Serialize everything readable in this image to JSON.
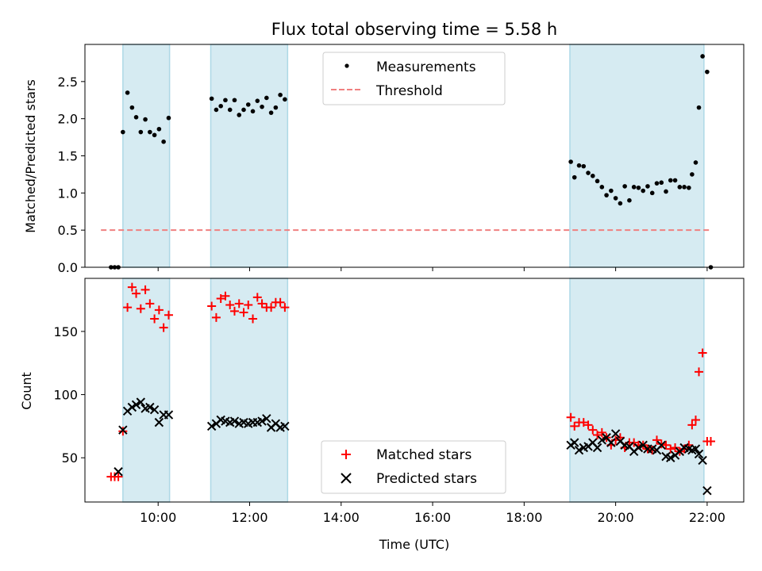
{
  "figure": {
    "title": "Flux total observing time = 5.58 h",
    "xlabel": "Time (UTC)",
    "colors": {
      "shade": "#add8e6",
      "threshold": "#f08080",
      "matched": "#ff0000",
      "predicted": "#000000",
      "points": "#000000"
    }
  },
  "chart_data": [
    {
      "type": "scatter",
      "title": "Flux total observing time = 5.58 h",
      "ylabel": "Matched/Predicted stars",
      "x_range_hours": [
        8.4,
        22.8
      ],
      "ylim": [
        0,
        3.0
      ],
      "y_ticks": [
        0.0,
        0.5,
        1.0,
        1.5,
        2.0,
        2.5
      ],
      "y_tick_labels": [
        "0.0",
        "0.5",
        "1.0",
        "1.5",
        "2.0",
        "2.5"
      ],
      "x_ticks_hours": [
        10,
        12,
        14,
        16,
        18,
        20,
        22
      ],
      "legend": {
        "position": "top-center",
        "entries": [
          "Measurements",
          "Threshold"
        ]
      },
      "shaded_intervals_hours": [
        [
          9.23,
          10.25
        ],
        [
          11.15,
          12.83
        ],
        [
          19.0,
          21.93
        ]
      ],
      "threshold": {
        "value": 0.5,
        "x_from": 8.75,
        "x_to": 22.1
      },
      "series": [
        {
          "name": "Measurements",
          "x": [
            8.97,
            9.05,
            9.13,
            9.23,
            9.33,
            9.43,
            9.52,
            9.62,
            9.72,
            9.82,
            9.92,
            10.02,
            10.12,
            10.23,
            11.17,
            11.27,
            11.37,
            11.47,
            11.57,
            11.67,
            11.77,
            11.87,
            11.97,
            12.07,
            12.17,
            12.27,
            12.37,
            12.47,
            12.57,
            12.67,
            12.77,
            19.02,
            19.1,
            19.2,
            19.3,
            19.4,
            19.5,
            19.6,
            19.7,
            19.8,
            19.9,
            20.0,
            20.1,
            20.2,
            20.3,
            20.4,
            20.5,
            20.6,
            20.7,
            20.8,
            20.9,
            21.0,
            21.1,
            21.2,
            21.3,
            21.4,
            21.5,
            21.6,
            21.67,
            21.75,
            21.82,
            21.9,
            22.0,
            22.08
          ],
          "y": [
            0.0,
            0.0,
            0.0,
            1.82,
            2.35,
            2.15,
            2.02,
            1.82,
            1.99,
            1.82,
            1.78,
            1.86,
            1.69,
            2.01,
            2.27,
            2.12,
            2.17,
            2.25,
            2.12,
            2.25,
            2.05,
            2.12,
            2.19,
            2.1,
            2.24,
            2.16,
            2.28,
            2.08,
            2.15,
            2.32,
            2.26,
            1.42,
            1.21,
            1.37,
            1.36,
            1.27,
            1.23,
            1.16,
            1.08,
            0.97,
            1.03,
            0.93,
            0.86,
            1.09,
            0.9,
            1.08,
            1.07,
            1.03,
            1.09,
            1.0,
            1.13,
            1.14,
            1.02,
            1.17,
            1.17,
            1.08,
            1.08,
            1.07,
            1.25,
            1.41,
            2.15,
            2.84,
            2.63,
            0.0
          ]
        }
      ]
    },
    {
      "type": "scatter",
      "ylabel": "Count",
      "xlabel": "Time (UTC)",
      "x_range_hours": [
        8.4,
        22.8
      ],
      "ylim": [
        15,
        192
      ],
      "y_ticks": [
        50,
        100,
        150
      ],
      "y_tick_labels": [
        "50",
        "100",
        "150"
      ],
      "x_ticks_hours": [
        10,
        12,
        14,
        16,
        18,
        20,
        22
      ],
      "x_tick_labels": [
        "10:00",
        "12:00",
        "14:00",
        "16:00",
        "18:00",
        "20:00",
        "22:00"
      ],
      "legend": {
        "position": "bottom-center",
        "entries": [
          "Matched stars",
          "Predicted stars"
        ]
      },
      "shaded_intervals_hours": [
        [
          9.23,
          10.25
        ],
        [
          11.15,
          12.83
        ],
        [
          19.0,
          21.93
        ]
      ],
      "series": [
        {
          "name": "Matched stars",
          "x": [
            8.97,
            9.05,
            9.13,
            9.23,
            9.33,
            9.43,
            9.52,
            9.62,
            9.72,
            9.82,
            9.92,
            10.02,
            10.12,
            10.23,
            11.17,
            11.27,
            11.37,
            11.47,
            11.57,
            11.67,
            11.77,
            11.87,
            11.97,
            12.07,
            12.17,
            12.27,
            12.37,
            12.47,
            12.57,
            12.67,
            12.77,
            19.02,
            19.1,
            19.2,
            19.3,
            19.4,
            19.5,
            19.6,
            19.7,
            19.8,
            19.9,
            20.0,
            20.1,
            20.2,
            20.3,
            20.4,
            20.5,
            20.6,
            20.7,
            20.8,
            20.9,
            21.0,
            21.1,
            21.2,
            21.3,
            21.4,
            21.5,
            21.6,
            21.67,
            21.75,
            21.82,
            21.9,
            22.0,
            22.08
          ],
          "y": [
            35,
            35,
            35,
            71,
            169,
            185,
            180,
            168,
            183,
            172,
            160,
            167,
            153,
            163,
            170,
            161,
            176,
            178,
            171,
            166,
            172,
            165,
            171,
            160,
            177,
            172,
            169,
            169,
            173,
            173,
            169,
            82,
            75,
            78,
            78,
            76,
            72,
            68,
            70,
            66,
            60,
            64,
            66,
            58,
            62,
            62,
            60,
            60,
            57,
            56,
            64,
            61,
            60,
            57,
            58,
            55,
            57,
            60,
            76,
            80,
            118,
            133,
            63,
            63
          ]
        },
        {
          "name": "Predicted stars",
          "x": [
            9.13,
            9.23,
            9.33,
            9.43,
            9.52,
            9.62,
            9.72,
            9.82,
            9.92,
            10.02,
            10.12,
            10.23,
            11.17,
            11.27,
            11.37,
            11.47,
            11.57,
            11.67,
            11.77,
            11.87,
            11.97,
            12.07,
            12.17,
            12.27,
            12.37,
            12.47,
            12.57,
            12.67,
            12.77,
            19.02,
            19.1,
            19.2,
            19.3,
            19.4,
            19.5,
            19.6,
            19.7,
            19.8,
            19.9,
            20.0,
            20.1,
            20.2,
            20.3,
            20.4,
            20.5,
            20.6,
            20.7,
            20.8,
            20.9,
            21.0,
            21.1,
            21.2,
            21.3,
            21.4,
            21.5,
            21.6,
            21.67,
            21.75,
            21.82,
            21.9,
            22.0
          ],
          "y": [
            39,
            72,
            87,
            90,
            92,
            94,
            89,
            90,
            88,
            78,
            84,
            84,
            75,
            77,
            80,
            79,
            78,
            79,
            77,
            78,
            77,
            78,
            78,
            79,
            81,
            74,
            77,
            74,
            75,
            60,
            62,
            56,
            58,
            59,
            62,
            58,
            64,
            66,
            62,
            69,
            63,
            60,
            59,
            55,
            58,
            60,
            57,
            57,
            56,
            60,
            51,
            50,
            52,
            55,
            58,
            57,
            56,
            57,
            53,
            48,
            24
          ]
        }
      ]
    }
  ]
}
